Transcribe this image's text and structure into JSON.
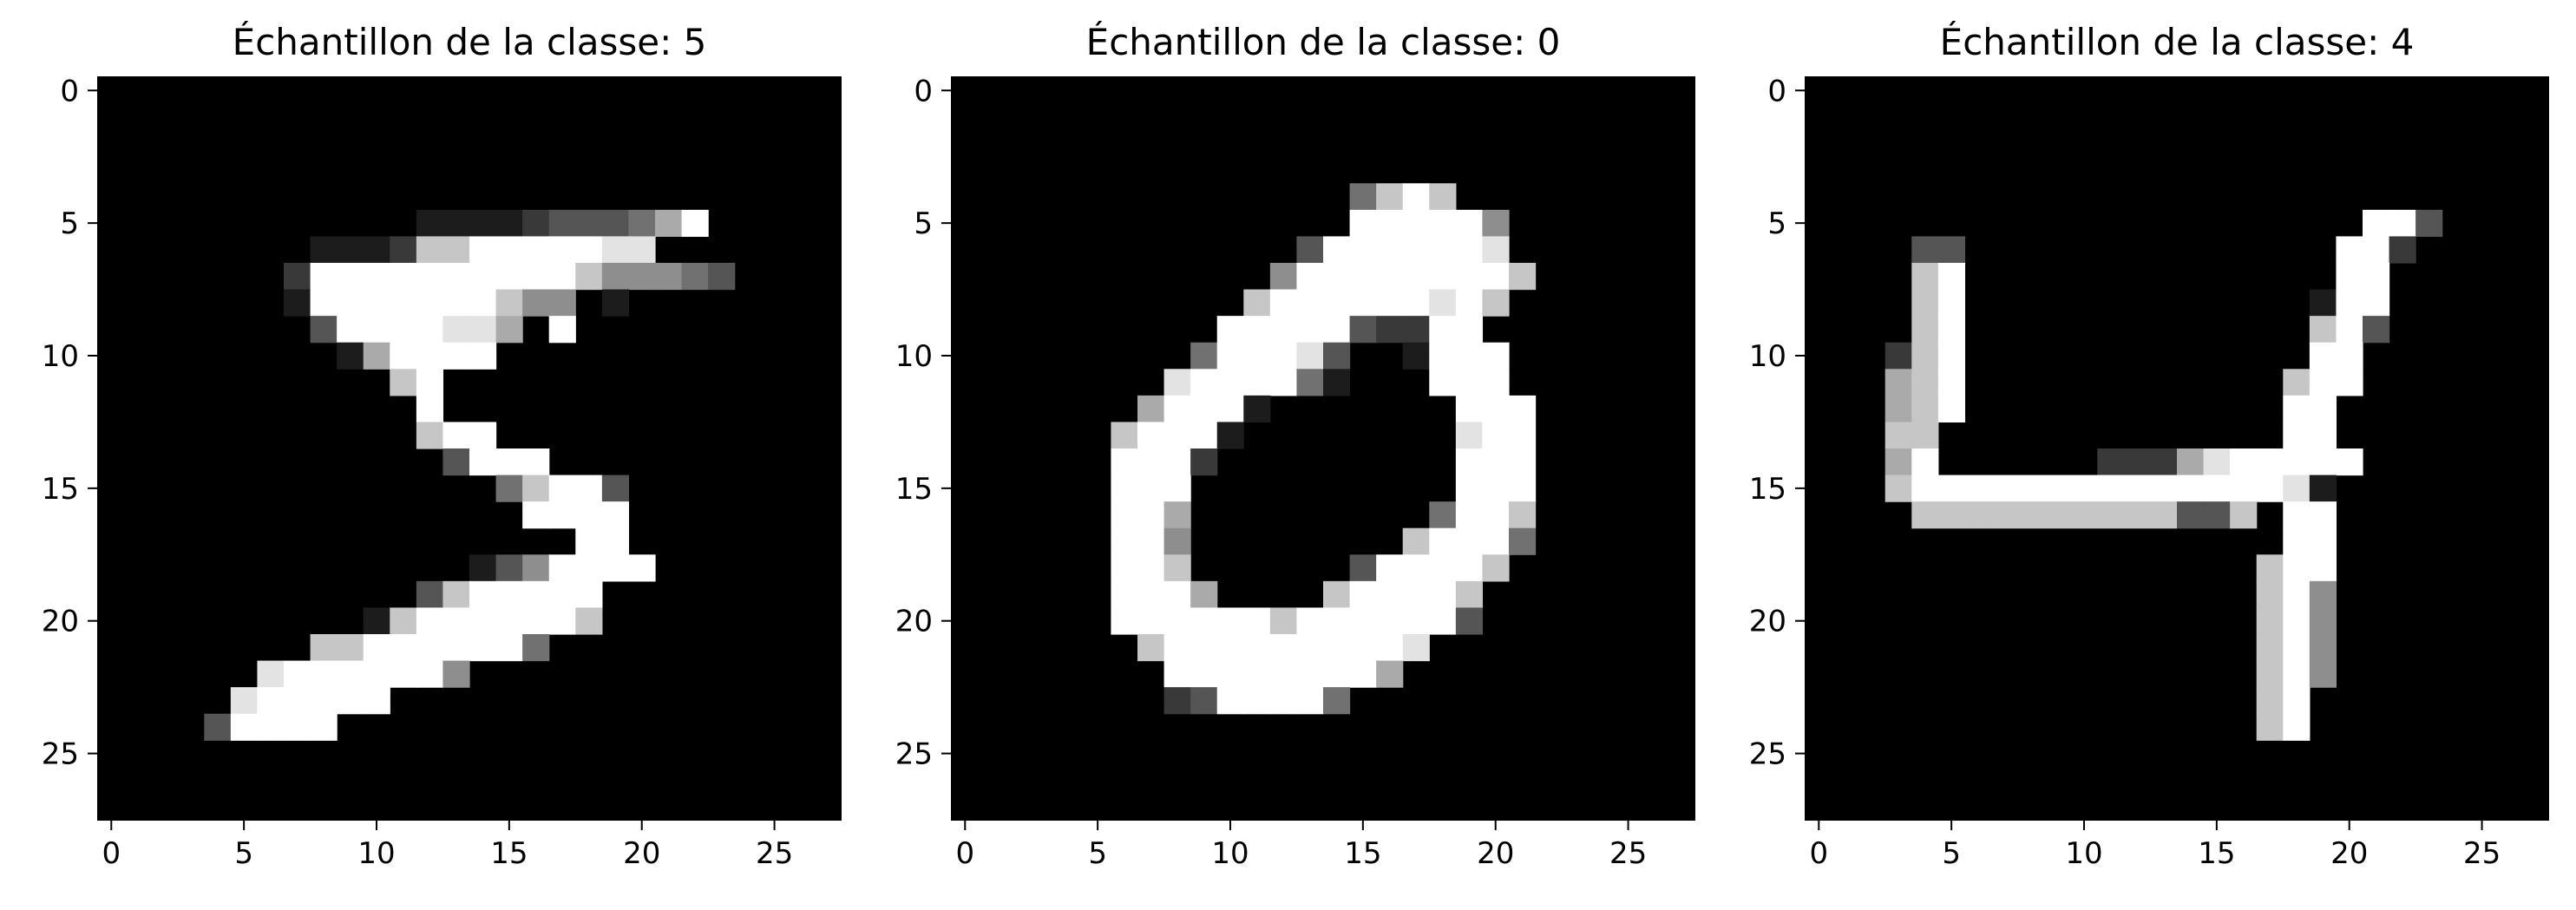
{
  "chart_data": [
    {
      "type": "heatmap",
      "title": "Échantillon de la classe: 5",
      "xlabel": "",
      "ylabel": "",
      "colormap": "gray",
      "x_ticks": [
        "0",
        "5",
        "10",
        "15",
        "20",
        "25"
      ],
      "y_ticks": [
        "0",
        "5",
        "10",
        "15",
        "20",
        "25"
      ],
      "xlim": [
        -0.5,
        27.5
      ],
      "ylim": [
        27.5,
        -0.5
      ],
      "grid": false,
      "pixel_rows": [
        "____________________________",
        "____________________________",
        "____________________________",
        "____________________________",
        "____________________________",
        "____________11112333469_____",
        "________1112779999988____",
        "_______29999999999755543____",
        "_______19999999755_1________",
        "________39999886_9__________",
        "_________169999_____________",
        "___________79_______________",
        "____________9_______________",
        "____________799_____________",
        "_____________3999___________",
        "_______________47993________",
        "________________9999_________",
        "__________________99________",
        "______________1359999________",
        "____________3799999__________",
        "__________179999997__________",
        "________779999994____________",
        "______89999995_______________",
        "_____899999__________________",
        "____39999____________________",
        "____________________________",
        "____________________________",
        "____________________________"
      ]
    },
    {
      "type": "heatmap",
      "title": "Échantillon de la classe: 0",
      "xlabel": "",
      "ylabel": "",
      "colormap": "gray",
      "x_ticks": [
        "0",
        "5",
        "10",
        "15",
        "20",
        "25"
      ],
      "y_ticks": [
        "0",
        "5",
        "10",
        "15",
        "20",
        "25"
      ],
      "xlim": [
        -0.5,
        27.5
      ],
      "ylim": [
        27.5,
        -0.5
      ],
      "grid": false,
      "pixel_rows": [
        "____________________________",
        "____________________________",
        "____________________________",
        "____________________________",
        "_______________4797_________",
        "_______________999995_______",
        "_____________39999998_______",
        "____________5999999997______",
        "___________7999999897_______",
        "__________9999932299________",
        "_________499983__1999_______",
        "________8999941___999_______",
        "_______69991_______999______",
        "______79991________899______",
        "______9992_________999______",
        "______999__________999______",
        "______996_________4997______",
        "______995________79994______",
        "______997______399997_______",
        "______9996____799997________",
        "______99999979999993________",
        "_______79999999998__________",
        "________999999996___________",
        "________2399994_____________",
        "____________________________",
        "____________________________",
        "____________________________",
        "____________________________"
      ]
    },
    {
      "type": "heatmap",
      "title": "Échantillon de la classe: 4",
      "xlabel": "",
      "ylabel": "",
      "colormap": "gray",
      "x_ticks": [
        "0",
        "5",
        "10",
        "15",
        "20",
        "25"
      ],
      "y_ticks": [
        "0",
        "5",
        "10",
        "15",
        "20",
        "25"
      ],
      "xlim": [
        -0.5,
        27.5
      ],
      "ylim": [
        27.5,
        -0.5
      ],
      "grid": false,
      "pixel_rows": [
        "____________________________",
        "____________________________",
        "____________________________",
        "____________________________",
        "____________________________",
        "_____________________993____",
        "____33______________992_____",
        "____79______________99______",
        "____79_____________199______",
        "____79_____________793______",
        "___279_____________99_______",
        "___679____________799_______",
        "___679____________99________",
        "___77_____________99________",
        "___69______2226899999_______",
        "___79999999999999981________",
        "____7777777777337_99________",
        "__________________99________",
        "_________________799________",
        "_________________795________",
        "_________________795________",
        "_________________795________",
        "_________________795________",
        "_________________79_________",
        "_________________79_________",
        "____________________________",
        "____________________________",
        "____________________________"
      ]
    }
  ]
}
